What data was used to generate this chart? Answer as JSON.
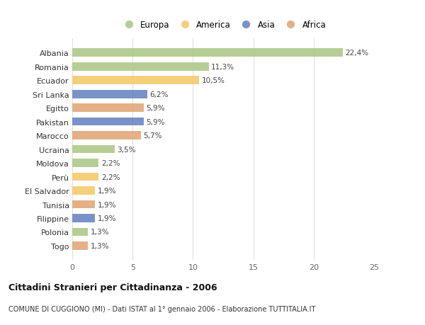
{
  "countries": [
    "Albania",
    "Romania",
    "Ecuador",
    "Sri Lanka",
    "Egitto",
    "Pakistan",
    "Marocco",
    "Ucraina",
    "Moldova",
    "Perù",
    "El Salvador",
    "Tunisia",
    "Filippine",
    "Polonia",
    "Togo"
  ],
  "values": [
    22.4,
    11.3,
    10.5,
    6.2,
    5.9,
    5.9,
    5.7,
    3.5,
    2.2,
    2.2,
    1.9,
    1.9,
    1.9,
    1.3,
    1.3
  ],
  "labels": [
    "22,4%",
    "11,3%",
    "10,5%",
    "6,2%",
    "5,9%",
    "5,9%",
    "5,7%",
    "3,5%",
    "2,2%",
    "2,2%",
    "1,9%",
    "1,9%",
    "1,9%",
    "1,3%",
    "1,3%"
  ],
  "categories": [
    "Europa",
    "Europa",
    "America",
    "Asia",
    "Africa",
    "Asia",
    "Africa",
    "Europa",
    "Europa",
    "America",
    "America",
    "Africa",
    "Asia",
    "Europa",
    "Africa"
  ],
  "colors": {
    "Europa": "#aec98a",
    "America": "#f5ca6e",
    "Asia": "#6b87c4",
    "Africa": "#e0a87a"
  },
  "legend_order": [
    "Europa",
    "America",
    "Asia",
    "Africa"
  ],
  "xlim": [
    0,
    25
  ],
  "xticks": [
    0,
    5,
    10,
    15,
    20,
    25
  ],
  "title": "Cittadini Stranieri per Cittadinanza - 2006",
  "subtitle": "COMUNE DI CUGGIONO (MI) - Dati ISTAT al 1° gennaio 2006 - Elaborazione TUTTITALIA.IT",
  "bg_color": "#ffffff",
  "grid_color": "#e0e0e0"
}
